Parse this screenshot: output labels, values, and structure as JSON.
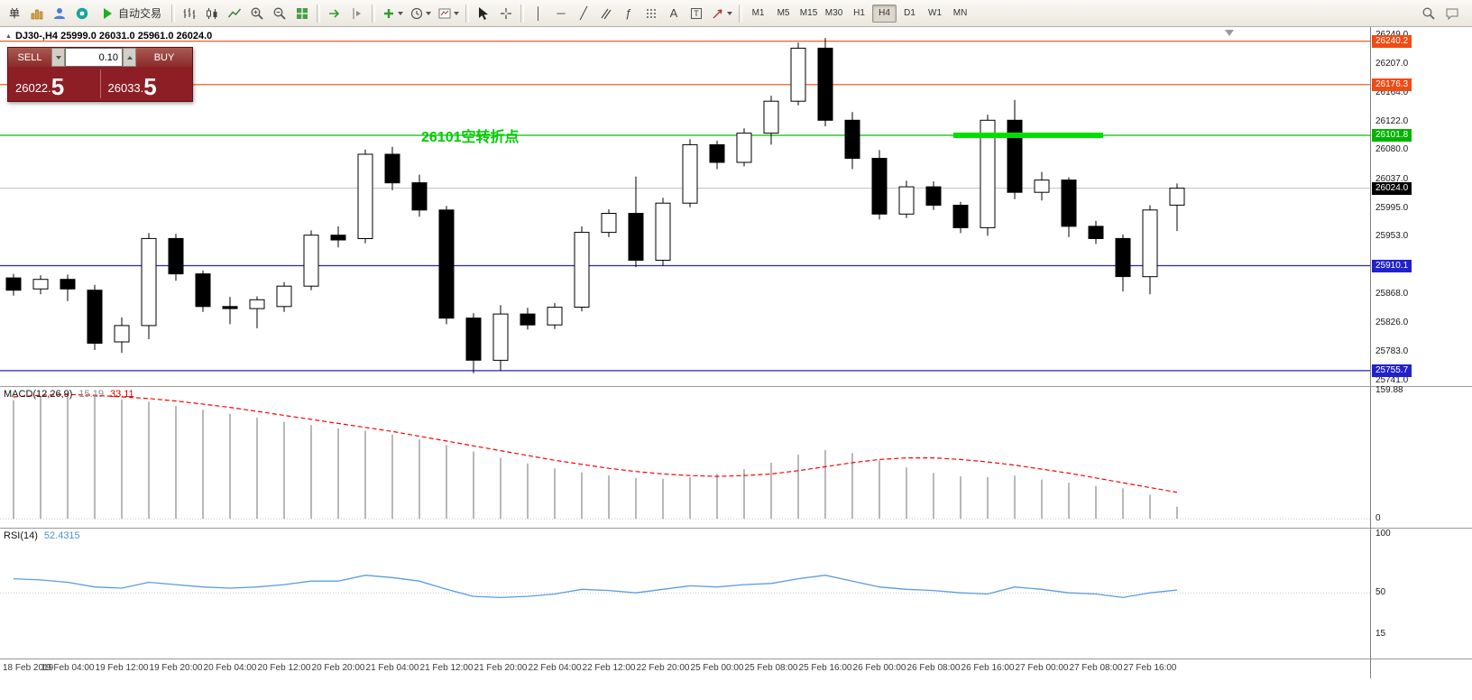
{
  "toolbar": {
    "new_order_label": "单",
    "autotrade_label": "自动交易",
    "object_labels": {
      "vline": "│",
      "hline": "─",
      "trendline": "╱",
      "fibo": "ƒ",
      "text_a": "A",
      "label_t": "T"
    },
    "timeframes": [
      {
        "label": "M1",
        "active": false
      },
      {
        "label": "M5",
        "active": false
      },
      {
        "label": "M15",
        "active": false
      },
      {
        "label": "M30",
        "active": false
      },
      {
        "label": "H1",
        "active": false
      },
      {
        "label": "H4",
        "active": true
      },
      {
        "label": "D1",
        "active": false
      },
      {
        "label": "W1",
        "active": false
      },
      {
        "label": "MN",
        "active": false
      }
    ]
  },
  "chart": {
    "collapse_glyph": "▲",
    "title": "DJ30-,H4  25999.0 26031.0 25961.0 26024.0",
    "annotation": "26101空转折点",
    "annotation_color": "#00cc00"
  },
  "trade_panel": {
    "sell_label": "SELL",
    "buy_label": "BUY",
    "volume": "0.10",
    "sell_price_main": "26022.",
    "sell_price_pip": "5",
    "buy_price_main": "26033.",
    "buy_price_pip": "5"
  },
  "price_axis": {
    "labels": [
      26249.0,
      26207.0,
      26164.0,
      26122.0,
      26080.0,
      26037.0,
      25995.0,
      25953.0,
      25868.0,
      25826.0,
      25783.0,
      25741.0
    ],
    "badges": [
      {
        "value": "26240.2",
        "price": 26240.2,
        "color": "#f24a14"
      },
      {
        "value": "26176.3",
        "price": 26176.3,
        "color": "#f24a14"
      },
      {
        "value": "26101.8",
        "price": 26101.8,
        "color": "#00b400"
      },
      {
        "value": "26024.0",
        "price": 26024.0,
        "color": "#000000"
      },
      {
        "value": "25910.1",
        "price": 25910.1,
        "color": "#2222cc"
      },
      {
        "value": "25755.7",
        "price": 25755.7,
        "color": "#2222cc"
      }
    ]
  },
  "indicators": {
    "macd": {
      "label": "MACD(12,26,9)",
      "value_main": "15.19",
      "value_signal": "33.11",
      "axis": [
        {
          "v": 159.88,
          "text": "159.88"
        },
        {
          "v": 0,
          "text": "0"
        }
      ]
    },
    "rsi": {
      "label": "RSI(14)",
      "value": "52.4315",
      "axis": [
        {
          "v": 100,
          "text": "100"
        },
        {
          "v": 50,
          "text": "50"
        },
        {
          "v": 15,
          "text": "15"
        }
      ]
    }
  },
  "time_axis": [
    "18 Feb 2019",
    "19 Feb 04:00",
    "19 Feb 12:00",
    "19 Feb 20:00",
    "20 Feb 04:00",
    "20 Feb 12:00",
    "20 Feb 20:00",
    "21 Feb 04:00",
    "21 Feb 12:00",
    "21 Feb 20:00",
    "22 Feb 04:00",
    "22 Feb 12:00",
    "22 Feb 20:00",
    "25 Feb 00:00",
    "25 Feb 08:00",
    "25 Feb 16:00",
    "26 Feb 00:00",
    "26 Feb 08:00",
    "26 Feb 16:00",
    "27 Feb 00:00",
    "27 Feb 08:00",
    "27 Feb 16:00"
  ],
  "chart_data": [
    {
      "type": "candlestick",
      "symbol": "DJ30-",
      "period": "H4",
      "ohlc_current": {
        "open": 25999.0,
        "high": 26031.0,
        "low": 25961.0,
        "close": 26024.0
      },
      "ylim": [
        25733,
        26261
      ],
      "candles": [
        [
          25892,
          25898,
          25866,
          25874
        ],
        [
          25876,
          25896,
          25868,
          25890
        ],
        [
          25890,
          25897,
          25858,
          25876
        ],
        [
          25874,
          25882,
          25786,
          25796
        ],
        [
          25798,
          25834,
          25782,
          25822
        ],
        [
          25822,
          25958,
          25802,
          25950
        ],
        [
          25950,
          25957,
          25888,
          25898
        ],
        [
          25898,
          25903,
          25842,
          25850
        ],
        [
          25850,
          25864,
          25824,
          25847
        ],
        [
          25847,
          25865,
          25818,
          25860
        ],
        [
          25850,
          25886,
          25842,
          25880
        ],
        [
          25880,
          25962,
          25874,
          25955
        ],
        [
          25955,
          25968,
          25937,
          25948
        ],
        [
          25950,
          26081,
          25943,
          26074
        ],
        [
          26074,
          26085,
          26021,
          26032
        ],
        [
          26032,
          26044,
          25982,
          25992
        ],
        [
          25992,
          25998,
          25824,
          25833
        ],
        [
          25833,
          25840,
          25752,
          25771
        ],
        [
          25771,
          25852,
          25755,
          25839
        ],
        [
          25839,
          25848,
          25816,
          25823
        ],
        [
          25823,
          25855,
          25817,
          25849
        ],
        [
          25849,
          25968,
          25843,
          25959
        ],
        [
          25959,
          25993,
          25952,
          25987
        ],
        [
          25987,
          26041,
          25908,
          25918
        ],
        [
          25918,
          26010,
          25910,
          26002
        ],
        [
          26002,
          26096,
          25996,
          26088
        ],
        [
          26088,
          26094,
          26052,
          26062
        ],
        [
          26062,
          26112,
          26056,
          26105
        ],
        [
          26105,
          26160,
          26088,
          26152
        ],
        [
          26152,
          26238,
          26146,
          26230
        ],
        [
          26230,
          26245,
          26115,
          26124
        ],
        [
          26124,
          26136,
          26052,
          26068
        ],
        [
          26068,
          26080,
          25978,
          25986
        ],
        [
          25986,
          26035,
          25980,
          26026
        ],
        [
          26026,
          26034,
          25992,
          25999
        ],
        [
          25999,
          26004,
          25958,
          25966
        ],
        [
          25966,
          26132,
          25954,
          26124
        ],
        [
          26124,
          26154,
          26008,
          26018
        ],
        [
          26018,
          26048,
          26006,
          26036
        ],
        [
          26036,
          26040,
          25952,
          25968
        ],
        [
          25968,
          25976,
          25942,
          25950
        ],
        [
          25950,
          25956,
          25872,
          25894
        ],
        [
          25894,
          25999,
          25868,
          25992
        ],
        [
          25999,
          26031,
          25961,
          26024
        ]
      ],
      "hlines": [
        {
          "price": 26240.2,
          "color": "#f24a14"
        },
        {
          "price": 26176.3,
          "color": "#f24a14"
        },
        {
          "price": 26101.8,
          "color": "#00c000"
        },
        {
          "price": 25910.1,
          "color": "#2222cc"
        },
        {
          "price": 25755.7,
          "color": "#2222cc"
        }
      ],
      "current_price": 26024.0,
      "highlight_segment": {
        "price": 26101.8,
        "from_index": 35,
        "to_index": 40,
        "color": "#00e000",
        "thickness": 6
      }
    },
    {
      "type": "bar",
      "name": "MACD(12,26,9)",
      "ylim": [
        -11,
        165.5
      ],
      "histogram": [
        148,
        153,
        155,
        152,
        149,
        146,
        141,
        136,
        131,
        126,
        121,
        117,
        113,
        110,
        105,
        99,
        92,
        84,
        76,
        69,
        63,
        58,
        54,
        51,
        50,
        52,
        56,
        62,
        70,
        80,
        86,
        82,
        73,
        64,
        57,
        53,
        52,
        54,
        49,
        45,
        41,
        38,
        30,
        15.19
      ],
      "signal": [
        152,
        154,
        155,
        154,
        152,
        150,
        147,
        143,
        139,
        134,
        129,
        124,
        119,
        114,
        109,
        103,
        97,
        91,
        85,
        79,
        73,
        68,
        63,
        59,
        56,
        54,
        53,
        54,
        56,
        60,
        65,
        70,
        74,
        76,
        76,
        74,
        71,
        67,
        62,
        57,
        51,
        45,
        39,
        33.11
      ],
      "histogram_color": "#b8b8b8",
      "signal_color": "#ff0000",
      "signal_style": "dashed"
    },
    {
      "type": "line",
      "name": "RSI(14)",
      "ylim": [
        -6,
        105.5
      ],
      "values": [
        62,
        61,
        59,
        55,
        54,
        59,
        57,
        55,
        54,
        55,
        57,
        60,
        60,
        65,
        63,
        60,
        53,
        47,
        46,
        47,
        49,
        53,
        52,
        50,
        53,
        56,
        55,
        57,
        58,
        62,
        65,
        60,
        55,
        53,
        52,
        50,
        49,
        55,
        53,
        50,
        49,
        46,
        50,
        52.4
      ],
      "color": "#5b9ce0",
      "levels": [
        50
      ]
    }
  ]
}
